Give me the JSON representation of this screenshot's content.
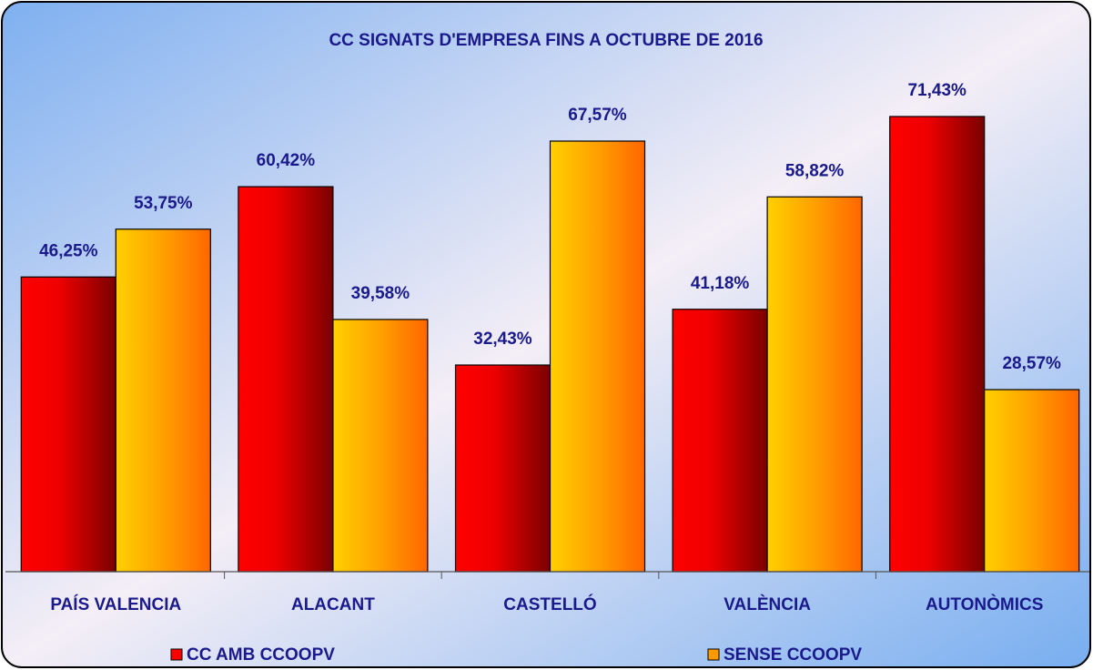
{
  "chart_data": {
    "type": "bar",
    "title": "CC SIGNATS D'EMPRESA FINS A OCTUBRE DE 2016",
    "categories": [
      "PAÍS VALENCIA",
      "ALACANT",
      "CASTELLÓ",
      "VALÈNCIA",
      "AUTONÒMICS"
    ],
    "series": [
      {
        "name": "CC AMB CCOOPV",
        "color": "#ff0000",
        "values": [
          46.25,
          60.42,
          32.43,
          41.18,
          71.43
        ],
        "value_labels": [
          "46,25%",
          "60,42%",
          "32,43%",
          "41,18%",
          "71,43%"
        ]
      },
      {
        "name": "SENSE CCOOPV",
        "color": "#ff9900",
        "values": [
          53.75,
          39.58,
          67.57,
          58.82,
          28.57
        ],
        "value_labels": [
          "53,75%",
          "39,58%",
          "67,57%",
          "58,82%",
          "28,57%"
        ]
      }
    ],
    "ylim": [
      0,
      80
    ]
  }
}
